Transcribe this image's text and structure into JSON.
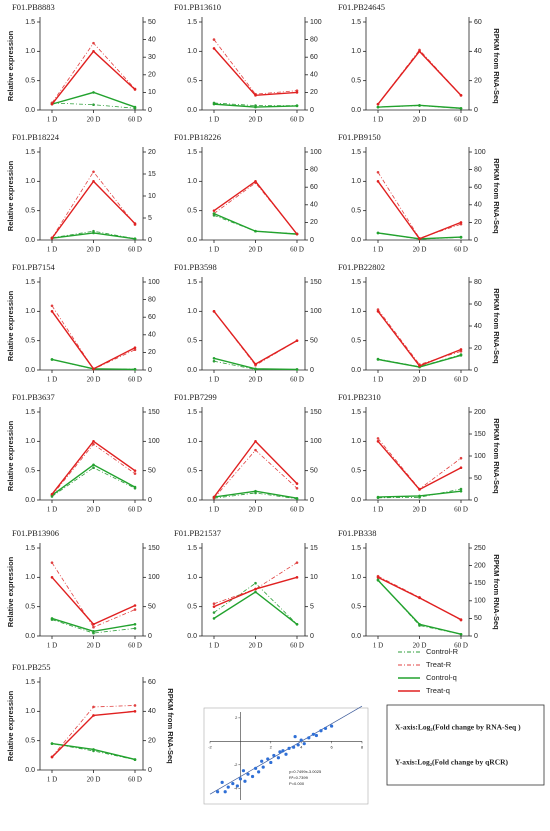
{
  "chart_data": [
    {
      "type": "line",
      "title": "F01.PB8883",
      "ylabel": "Relative expression",
      "categories": [
        "1 D",
        "20 D",
        "60 D"
      ],
      "ylim": [
        0,
        1.5
      ],
      "yticks": [
        {
          "value": 0,
          "label": "0.0"
        },
        0.5,
        {
          "value": 1,
          "label": "1.0"
        },
        1.5
      ],
      "y2lim": [
        0,
        50
      ],
      "y2ticks": [
        0,
        10,
        20,
        30,
        40,
        50
      ],
      "series": [
        {
          "axis": "y2",
          "values": [
            4,
            3,
            1
          ]
        },
        {
          "axis": "y2",
          "values": [
            4,
            38,
            12
          ]
        },
        {
          "axis": "y",
          "values": [
            0.1,
            0.3,
            0.05
          ]
        },
        {
          "axis": "y",
          "values": [
            0.1,
            1.0,
            0.35
          ]
        }
      ]
    },
    {
      "type": "line",
      "title": "F01.PB13610",
      "categories": [
        "1 D",
        "20 D",
        "60 D"
      ],
      "ylim": [
        0,
        1.5
      ],
      "yticks": [
        {
          "value": 0,
          "label": "0.0"
        },
        0.5,
        {
          "value": 1,
          "label": "1.0"
        },
        1.5
      ],
      "y2lim": [
        0,
        100
      ],
      "y2ticks": [
        0,
        20,
        40,
        60,
        80,
        100
      ],
      "series": [
        {
          "axis": "y2",
          "values": [
            8,
            5,
            5
          ]
        },
        {
          "axis": "y2",
          "values": [
            80,
            18,
            22
          ]
        },
        {
          "axis": "y",
          "values": [
            0.1,
            0.05,
            0.07
          ]
        },
        {
          "axis": "y",
          "values": [
            1.05,
            0.25,
            0.3
          ]
        }
      ]
    },
    {
      "type": "line",
      "title": "F01.PB24645",
      "y2label": "RPKM from RNA-Seq",
      "categories": [
        "1 D",
        "20 D",
        "60 D"
      ],
      "ylim": [
        0,
        1.5
      ],
      "yticks": [
        {
          "value": 0,
          "label": "0.0"
        },
        0.5,
        {
          "value": 1,
          "label": "1.0"
        },
        1.5
      ],
      "y2lim": [
        0,
        60
      ],
      "y2ticks": [
        0,
        20,
        40,
        60
      ],
      "series": [
        {
          "axis": "y2",
          "values": [
            2,
            3,
            1
          ]
        },
        {
          "axis": "y2",
          "values": [
            4,
            41,
            10
          ]
        },
        {
          "axis": "y",
          "values": [
            0.05,
            0.08,
            0.03
          ]
        },
        {
          "axis": "y",
          "values": [
            0.1,
            1.0,
            0.25
          ]
        }
      ]
    },
    {
      "type": "line",
      "title": "F01.PB18224",
      "ylabel": "Relative expression",
      "categories": [
        "1 D",
        "20 D",
        "60 D"
      ],
      "ylim": [
        0,
        1.5
      ],
      "yticks": [
        {
          "value": 0,
          "label": "0.0"
        },
        0.5,
        {
          "value": 1,
          "label": "1.0"
        },
        1.5
      ],
      "y2lim": [
        0,
        20
      ],
      "y2ticks": [
        0,
        5,
        10,
        15,
        20
      ],
      "series": [
        {
          "axis": "y2",
          "values": [
            0.5,
            2,
            0.3
          ]
        },
        {
          "axis": "y2",
          "values": [
            0.5,
            15.5,
            3.5
          ]
        },
        {
          "axis": "y",
          "values": [
            0.03,
            0.12,
            0.02
          ]
        },
        {
          "axis": "y",
          "values": [
            0.03,
            1.0,
            0.28
          ]
        }
      ]
    },
    {
      "type": "line",
      "title": "F01.PB18226",
      "categories": [
        "1 D",
        "20 D",
        "60 D"
      ],
      "ylim": [
        0,
        1.5
      ],
      "yticks": [
        {
          "value": 0,
          "label": "0.0"
        },
        0.5,
        {
          "value": 1,
          "label": "1.0"
        },
        1.5
      ],
      "y2lim": [
        0,
        100
      ],
      "y2ticks": [
        0,
        20,
        40,
        60,
        80,
        100
      ],
      "series": [
        {
          "axis": "y2",
          "values": [
            28,
            10,
            7
          ]
        },
        {
          "axis": "y2",
          "values": [
            30,
            65,
            7
          ]
        },
        {
          "axis": "y",
          "values": [
            0.45,
            0.15,
            0.1
          ]
        },
        {
          "axis": "y",
          "values": [
            0.5,
            1.0,
            0.1
          ]
        }
      ]
    },
    {
      "type": "line",
      "title": "F01.PB9150",
      "y2label": "RPKM from RNA-Seq",
      "categories": [
        "1 D",
        "20 D",
        "60 D"
      ],
      "ylim": [
        0,
        1.5
      ],
      "yticks": [
        {
          "value": 0,
          "label": "0.0"
        },
        0.5,
        {
          "value": 1,
          "label": "1.0"
        },
        1.5
      ],
      "y2lim": [
        0,
        100
      ],
      "y2ticks": [
        0,
        20,
        40,
        60,
        80,
        100
      ],
      "series": [
        {
          "axis": "y2",
          "values": [
            8,
            1,
            3
          ]
        },
        {
          "axis": "y2",
          "values": [
            77,
            2,
            18
          ]
        },
        {
          "axis": "y",
          "values": [
            0.12,
            0.02,
            0.05
          ]
        },
        {
          "axis": "y",
          "values": [
            1.0,
            0.02,
            0.3
          ]
        }
      ]
    },
    {
      "type": "line",
      "title": "F01.PB7154",
      "ylabel": "Relative expression",
      "categories": [
        "1 D",
        "20 D",
        "60 D"
      ],
      "ylim": [
        0,
        1.5
      ],
      "yticks": [
        {
          "value": 0,
          "label": "0.0"
        },
        0.5,
        {
          "value": 1,
          "label": "1.0"
        },
        1.5
      ],
      "y2lim": [
        0,
        100
      ],
      "y2ticks": [
        0,
        20,
        40,
        60,
        80,
        100
      ],
      "series": [
        {
          "axis": "y2",
          "values": [
            12,
            1,
            1
          ]
        },
        {
          "axis": "y2",
          "values": [
            73,
            1,
            23
          ]
        },
        {
          "axis": "y",
          "values": [
            0.18,
            0.02,
            0.01
          ]
        },
        {
          "axis": "y",
          "values": [
            1.0,
            0.02,
            0.38
          ]
        }
      ]
    },
    {
      "type": "line",
      "title": "F01.PB3598",
      "categories": [
        "1 D",
        "20 D",
        "60 D"
      ],
      "ylim": [
        0,
        1.5
      ],
      "yticks": [
        {
          "value": 0,
          "label": "0.0"
        },
        0.5,
        {
          "value": 1,
          "label": "1.0"
        },
        1.5
      ],
      "y2lim": [
        0,
        150
      ],
      "y2ticks": [
        0,
        50,
        100,
        150
      ],
      "series": [
        {
          "axis": "y2",
          "values": [
            15,
            1,
            1
          ]
        },
        {
          "axis": "y2",
          "values": [
            100,
            8,
            50
          ]
        },
        {
          "axis": "y",
          "values": [
            0.2,
            0.02,
            0.01
          ]
        },
        {
          "axis": "y",
          "values": [
            1.0,
            0.1,
            0.5
          ]
        }
      ]
    },
    {
      "type": "line",
      "title": "F01.PB22802",
      "y2label": "RPKM from RNA-Seq",
      "categories": [
        "1 D",
        "20 D",
        "60 D"
      ],
      "ylim": [
        0,
        1.5
      ],
      "yticks": [
        {
          "value": 0,
          "label": "0.0"
        },
        0.5,
        {
          "value": 1,
          "label": "1.0"
        },
        1.5
      ],
      "y2lim": [
        0,
        80
      ],
      "y2ticks": [
        0,
        20,
        40,
        60,
        80
      ],
      "series": [
        {
          "axis": "y2",
          "values": [
            10,
            3,
            14
          ]
        },
        {
          "axis": "y2",
          "values": [
            55,
            5,
            17
          ]
        },
        {
          "axis": "y",
          "values": [
            0.18,
            0.05,
            0.25
          ]
        },
        {
          "axis": "y",
          "values": [
            1.0,
            0.07,
            0.35
          ]
        }
      ]
    },
    {
      "type": "line",
      "title": "F01.PB3637",
      "ylabel": "Relative expression",
      "categories": [
        "1 D",
        "20 D",
        "60 D"
      ],
      "ylim": [
        0,
        1.5
      ],
      "yticks": [
        {
          "value": 0,
          "label": "0.0"
        },
        0.5,
        {
          "value": 1,
          "label": "1.0"
        },
        1.5
      ],
      "y2lim": [
        0,
        150
      ],
      "y2ticks": [
        0,
        50,
        100,
        150
      ],
      "series": [
        {
          "axis": "y2",
          "values": [
            6,
            55,
            20
          ]
        },
        {
          "axis": "y2",
          "values": [
            8,
            95,
            45
          ]
        },
        {
          "axis": "y",
          "values": [
            0.08,
            0.6,
            0.22
          ]
        },
        {
          "axis": "y",
          "values": [
            0.1,
            1.0,
            0.5
          ]
        }
      ]
    },
    {
      "type": "line",
      "title": "F01.PB7299",
      "categories": [
        "1 D",
        "20 D",
        "60 D"
      ],
      "ylim": [
        0,
        1.5
      ],
      "yticks": [
        {
          "value": 0,
          "label": "0.0"
        },
        0.5,
        {
          "value": 1,
          "label": "1.0"
        },
        1.5
      ],
      "y2lim": [
        0,
        150
      ],
      "y2ticks": [
        0,
        50,
        100,
        150
      ],
      "series": [
        {
          "axis": "y2",
          "values": [
            3,
            12,
            2
          ]
        },
        {
          "axis": "y2",
          "values": [
            3,
            85,
            20
          ]
        },
        {
          "axis": "y",
          "values": [
            0.05,
            0.15,
            0.03
          ]
        },
        {
          "axis": "y",
          "values": [
            0.05,
            1.0,
            0.28
          ]
        }
      ]
    },
    {
      "type": "line",
      "title": "F01.PB2310",
      "y2label": "RPKM from RNA-Seq",
      "categories": [
        "1 D",
        "20 D",
        "60 D"
      ],
      "ylim": [
        0,
        1.5
      ],
      "yticks": [
        {
          "value": 0,
          "label": "0.0"
        },
        0.5,
        {
          "value": 1,
          "label": "1.0"
        },
        1.5
      ],
      "y2lim": [
        0,
        200
      ],
      "y2ticks": [
        0,
        50,
        100,
        150,
        200
      ],
      "series": [
        {
          "axis": "y2",
          "values": [
            5,
            6,
            25
          ]
        },
        {
          "axis": "y2",
          "values": [
            140,
            25,
            95
          ]
        },
        {
          "axis": "y",
          "values": [
            0.05,
            0.07,
            0.15
          ]
        },
        {
          "axis": "y",
          "values": [
            1.0,
            0.18,
            0.55
          ]
        }
      ]
    },
    {
      "type": "line",
      "title": "F01.PB13906",
      "ylabel": "Relative expression",
      "categories": [
        "1 D",
        "20 D",
        "60 D"
      ],
      "ylim": [
        0,
        1.5
      ],
      "yticks": [
        {
          "value": 0,
          "label": "0.0"
        },
        0.5,
        {
          "value": 1,
          "label": "1.0"
        },
        1.5
      ],
      "y2lim": [
        0,
        150
      ],
      "y2ticks": [
        0,
        50,
        100,
        150
      ],
      "series": [
        {
          "axis": "y2",
          "values": [
            28,
            5,
            13
          ]
        },
        {
          "axis": "y2",
          "values": [
            125,
            15,
            45
          ]
        },
        {
          "axis": "y",
          "values": [
            0.3,
            0.08,
            0.2
          ]
        },
        {
          "axis": "y",
          "values": [
            1.0,
            0.2,
            0.52
          ]
        }
      ]
    },
    {
      "type": "line",
      "title": "F01.PB21537",
      "categories": [
        "1 D",
        "20 D",
        "60 D"
      ],
      "ylim": [
        0,
        1.5
      ],
      "yticks": [
        {
          "value": 0,
          "label": "0.0"
        },
        0.5,
        {
          "value": 1,
          "label": "1.0"
        },
        1.5
      ],
      "y2lim": [
        0,
        15
      ],
      "y2ticks": [
        0,
        5,
        10,
        15
      ],
      "series": [
        {
          "axis": "y2",
          "values": [
            4,
            9,
            2
          ]
        },
        {
          "axis": "y2",
          "values": [
            5.5,
            8,
            12.5
          ]
        },
        {
          "axis": "y",
          "values": [
            0.3,
            0.75,
            0.2
          ]
        },
        {
          "axis": "y",
          "values": [
            0.5,
            0.8,
            1.0
          ]
        }
      ]
    },
    {
      "type": "line",
      "title": "F01.PB338",
      "y2label": "RPKM from RNA-Seq",
      "categories": [
        "1 D",
        "20 D",
        "60 D"
      ],
      "ylim": [
        0,
        1.5
      ],
      "yticks": [
        {
          "value": 0,
          "label": "0.0"
        },
        0.5,
        {
          "value": 1,
          "label": "1.0"
        },
        1.5
      ],
      "y2lim": [
        0,
        250
      ],
      "y2ticks": [
        0,
        50,
        100,
        150,
        200,
        250
      ],
      "series": [
        {
          "axis": "y2",
          "values": [
            160,
            30,
            5
          ]
        },
        {
          "axis": "y2",
          "values": [
            170,
            110,
            45
          ]
        },
        {
          "axis": "y",
          "values": [
            0.95,
            0.2,
            0.03
          ]
        },
        {
          "axis": "y",
          "values": [
            1.0,
            0.65,
            0.28
          ]
        }
      ]
    },
    {
      "type": "line",
      "title": "F01.PB255",
      "ylabel": "Relative expression",
      "y2label": "RPKM from RNA-Seq",
      "categories": [
        "1 D",
        "20 D",
        "60 D"
      ],
      "ylim": [
        0,
        1.5
      ],
      "yticks": [
        {
          "value": 0,
          "label": "0.0"
        },
        0.5,
        {
          "value": 1,
          "label": "1.0"
        },
        1.5
      ],
      "y2lim": [
        0,
        60
      ],
      "y2ticks": [
        0,
        20,
        40,
        60
      ],
      "series": [
        {
          "axis": "y2",
          "values": [
            18,
            13,
            7
          ]
        },
        {
          "axis": "y2",
          "values": [
            9,
            43,
            44
          ]
        },
        {
          "axis": "y",
          "values": [
            0.45,
            0.35,
            0.18
          ]
        },
        {
          "axis": "y",
          "values": [
            0.22,
            0.93,
            1.0
          ]
        }
      ]
    },
    {
      "type": "scatter",
      "color": "#2f6fd6",
      "xlim": [
        -2,
        8
      ],
      "ylim": [
        -5,
        2.5
      ],
      "xticks": [
        -2,
        2,
        4,
        6,
        8
      ],
      "yticks": [
        -4,
        -2,
        2
      ],
      "x": [
        -1.5,
        -1,
        -0.8,
        -0.5,
        -0.2,
        0,
        0.3,
        0.5,
        0.8,
        1,
        1.2,
        1.5,
        1.8,
        2,
        2.2,
        2.5,
        2.8,
        3,
        3.2,
        3.5,
        3.8,
        4,
        4.2,
        4.5,
        4.8,
        5,
        5.3,
        5.6,
        6,
        -1.2,
        0.2,
        1.4,
        2.6,
        3.6
      ],
      "values": [
        -4.3,
        -4.3,
        -3.9,
        -3.6,
        -3.8,
        -3.2,
        -3.4,
        -2.8,
        -3,
        -2.3,
        -2.6,
        -2.2,
        -1.5,
        -1.8,
        -1.2,
        -1.4,
        -0.8,
        -1.1,
        -0.6,
        -0.5,
        -0.3,
        0.1,
        -0.2,
        0.3,
        0.6,
        0.5,
        0.9,
        1.1,
        1.3,
        -3.5,
        -2.5,
        -1.7,
        -0.9,
        0.4
      ],
      "trendline": {
        "slope": 0.7499,
        "intercept": -3.0025
      },
      "annotations": [
        "y=0.7499x-3.0025",
        "R²=0.7399",
        "P=0.000"
      ]
    }
  ],
  "legend": {
    "entries": [
      {
        "name": "Control-R",
        "color": "#2e9e3a",
        "dash": "4 2 1 2"
      },
      {
        "name": "Treat-R",
        "color": "#e04040",
        "dash": "4 2 1 2"
      },
      {
        "name": "Control-q",
        "color": "#22a22e",
        "dash": "none"
      },
      {
        "name": "Treat-q",
        "color": "#e02020",
        "dash": "none"
      }
    ]
  },
  "note": [
    "X-axis:Log₂(Fold change by RNA-Seq )",
    "Y-axis:Log₂(Fold change by qRCR)"
  ]
}
